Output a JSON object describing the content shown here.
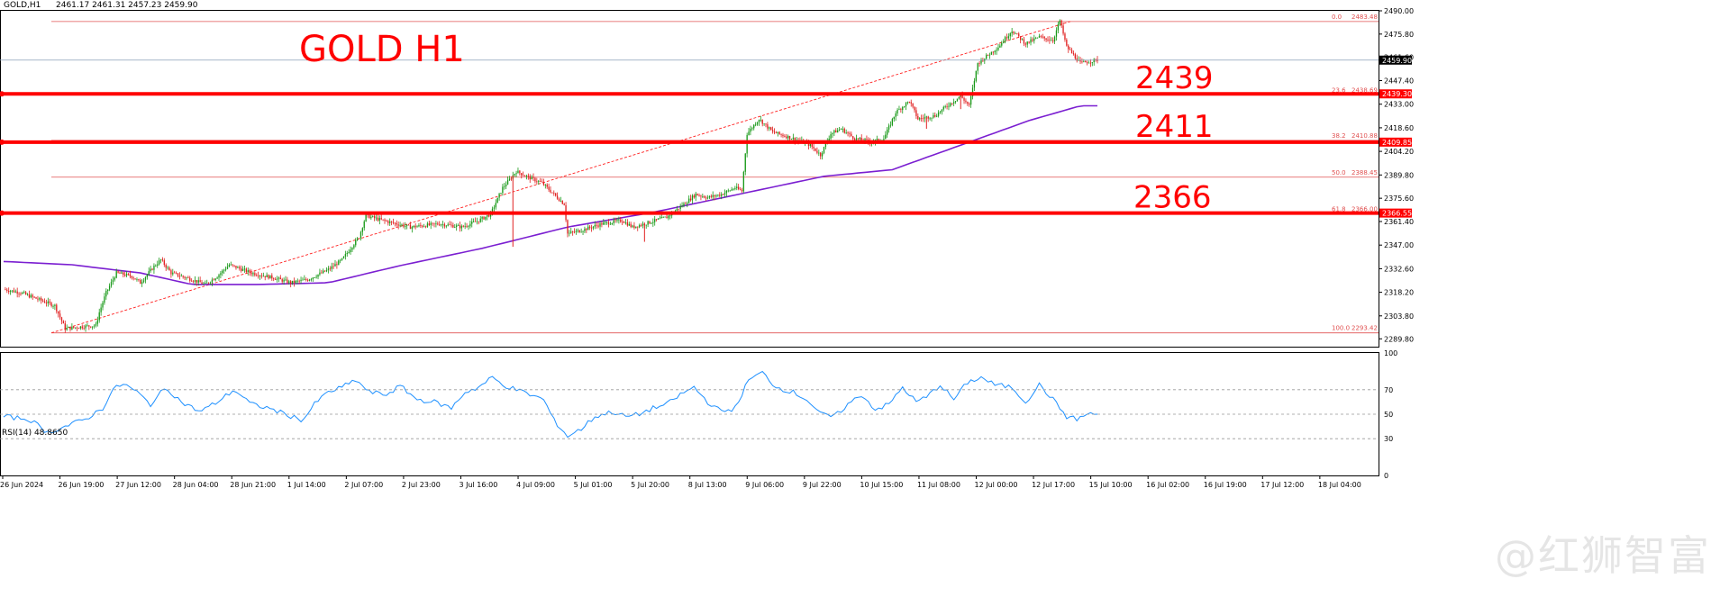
{
  "header": {
    "symbol": "GOLD,H1",
    "ohlc": "2461.17 2461.31 2457.23 2459.90"
  },
  "chart_title": "GOLD H1",
  "levels": [
    {
      "label": "2439",
      "price": 2439.3,
      "price_text": "2439.30"
    },
    {
      "label": "2411",
      "price": 2409.85,
      "price_text": "2409.85"
    },
    {
      "label": "2366",
      "price": 2366.55,
      "price_text": "2366.55"
    }
  ],
  "current_price": {
    "value": 2459.9,
    "text": "2459.90"
  },
  "fib": [
    {
      "level": "0.0",
      "price": 2483.48,
      "text": "2483.48"
    },
    {
      "level": "23.6",
      "price": 2438.69,
      "text": "2438.69"
    },
    {
      "level": "38.2",
      "price": 2410.88,
      "text": "2410.88"
    },
    {
      "level": "50.0",
      "price": 2388.45,
      "text": "2388.45"
    },
    {
      "level": "61.8",
      "price": 2366.0,
      "text": "2366.00"
    },
    {
      "level": "100.0",
      "price": 2293.42,
      "text": "2293.42"
    }
  ],
  "rsi": {
    "label": "RSI(14) 48.8650",
    "ticks": [
      "100",
      "70",
      "50",
      "30",
      "0"
    ]
  },
  "watermark": "@红狮智富",
  "colors": {
    "bull": "#1a9a1a",
    "bear": "#e02020",
    "level_line": "#ff0000",
    "ma": "#7b1fd1",
    "rsi": "#1e90ff",
    "fib": "#e05050"
  },
  "chart_data": {
    "type": "candlestick",
    "title": "GOLD H1",
    "ylim": [
      2285,
      2490
    ],
    "y_ticks": [
      "2490.00",
      "2475.80",
      "2461.60",
      "2447.40",
      "2433.00",
      "2418.60",
      "2404.20",
      "2389.80",
      "2375.60",
      "2361.40",
      "2347.00",
      "2332.60",
      "2318.20",
      "2303.80",
      "2289.80"
    ],
    "x_tick_labels": [
      "26 Jun 2024",
      "26 Jun 19:00",
      "27 Jun 12:00",
      "28 Jun 04:00",
      "28 Jun 21:00",
      "1 Jul 14:00",
      "2 Jul 07:00",
      "2 Jul 23:00",
      "3 Jul 16:00",
      "4 Jul 09:00",
      "5 Jul 01:00",
      "5 Jul 20:00",
      "8 Jul 13:00",
      "9 Jul 06:00",
      "9 Jul 22:00",
      "10 Jul 15:00",
      "11 Jul 08:00",
      "12 Jul 00:00",
      "12 Jul 17:00",
      "15 Jul 10:00",
      "16 Jul 02:00",
      "16 Jul 19:00",
      "17 Jul 12:00",
      "18 Jul 04:00"
    ],
    "price_path": [
      [
        0,
        2320
      ],
      [
        10,
        2318
      ],
      [
        20,
        2314
      ],
      [
        30,
        2310
      ],
      [
        36,
        2296
      ],
      [
        44,
        2297
      ],
      [
        54,
        2298
      ],
      [
        56,
        2306
      ],
      [
        60,
        2318
      ],
      [
        66,
        2330
      ],
      [
        75,
        2328
      ],
      [
        80,
        2324
      ],
      [
        88,
        2334
      ],
      [
        92,
        2338
      ],
      [
        98,
        2330
      ],
      [
        110,
        2326
      ],
      [
        118,
        2323
      ],
      [
        125,
        2328
      ],
      [
        132,
        2335
      ],
      [
        145,
        2330
      ],
      [
        158,
        2327
      ],
      [
        168,
        2324
      ],
      [
        178,
        2326
      ],
      [
        190,
        2332
      ],
      [
        198,
        2338
      ],
      [
        208,
        2352
      ],
      [
        212,
        2365
      ],
      [
        222,
        2362
      ],
      [
        238,
        2358
      ],
      [
        255,
        2360
      ],
      [
        268,
        2358
      ],
      [
        278,
        2362
      ],
      [
        285,
        2366
      ],
      [
        292,
        2382
      ],
      [
        300,
        2392
      ],
      [
        308,
        2388
      ],
      [
        315,
        2385
      ],
      [
        322,
        2378
      ],
      [
        328,
        2372
      ],
      [
        330,
        2354
      ],
      [
        338,
        2356
      ],
      [
        350,
        2360
      ],
      [
        362,
        2362
      ],
      [
        368,
        2358
      ],
      [
        375,
        2360
      ],
      [
        388,
        2364
      ],
      [
        398,
        2372
      ],
      [
        405,
        2378
      ],
      [
        412,
        2376
      ],
      [
        420,
        2378
      ],
      [
        428,
        2382
      ],
      [
        432,
        2380
      ],
      [
        435,
        2415
      ],
      [
        442,
        2424
      ],
      [
        450,
        2416
      ],
      [
        462,
        2412
      ],
      [
        472,
        2408
      ],
      [
        478,
        2402
      ],
      [
        484,
        2415
      ],
      [
        490,
        2418
      ],
      [
        498,
        2412
      ],
      [
        508,
        2410
      ],
      [
        515,
        2412
      ],
      [
        522,
        2428
      ],
      [
        530,
        2435
      ],
      [
        535,
        2424
      ],
      [
        545,
        2426
      ],
      [
        552,
        2432
      ],
      [
        560,
        2438
      ],
      [
        565,
        2432
      ],
      [
        570,
        2458
      ],
      [
        582,
        2468
      ],
      [
        590,
        2478
      ],
      [
        598,
        2470
      ],
      [
        606,
        2474
      ],
      [
        614,
        2472
      ],
      [
        618,
        2484
      ],
      [
        622,
        2468
      ],
      [
        630,
        2458
      ],
      [
        640,
        2460
      ]
    ],
    "ma_path": [
      [
        0,
        2337
      ],
      [
        40,
        2335
      ],
      [
        80,
        2330
      ],
      [
        110,
        2323
      ],
      [
        150,
        2323
      ],
      [
        190,
        2324
      ],
      [
        230,
        2334
      ],
      [
        280,
        2345
      ],
      [
        330,
        2358
      ],
      [
        380,
        2367
      ],
      [
        430,
        2378
      ],
      [
        480,
        2389
      ],
      [
        520,
        2393
      ],
      [
        560,
        2408
      ],
      [
        600,
        2423
      ],
      [
        630,
        2432
      ]
    ],
    "rsi_path": [
      [
        0,
        48
      ],
      [
        15,
        46
      ],
      [
        26,
        35
      ],
      [
        36,
        40
      ],
      [
        48,
        46
      ],
      [
        58,
        55
      ],
      [
        64,
        70
      ],
      [
        70,
        75
      ],
      [
        78,
        68
      ],
      [
        86,
        58
      ],
      [
        95,
        72
      ],
      [
        104,
        60
      ],
      [
        115,
        52
      ],
      [
        125,
        60
      ],
      [
        135,
        70
      ],
      [
        145,
        58
      ],
      [
        155,
        55
      ],
      [
        165,
        50
      ],
      [
        175,
        45
      ],
      [
        183,
        60
      ],
      [
        190,
        68
      ],
      [
        198,
        72
      ],
      [
        206,
        78
      ],
      [
        214,
        68
      ],
      [
        224,
        66
      ],
      [
        232,
        73
      ],
      [
        242,
        62
      ],
      [
        252,
        60
      ],
      [
        262,
        55
      ],
      [
        270,
        68
      ],
      [
        278,
        72
      ],
      [
        286,
        80
      ],
      [
        292,
        74
      ],
      [
        300,
        70
      ],
      [
        308,
        66
      ],
      [
        316,
        62
      ],
      [
        322,
        45
      ],
      [
        330,
        32
      ],
      [
        338,
        38
      ],
      [
        346,
        48
      ],
      [
        356,
        52
      ],
      [
        364,
        48
      ],
      [
        372,
        50
      ],
      [
        380,
        55
      ],
      [
        388,
        58
      ],
      [
        396,
        66
      ],
      [
        404,
        72
      ],
      [
        412,
        60
      ],
      [
        420,
        52
      ],
      [
        428,
        55
      ],
      [
        436,
        78
      ],
      [
        444,
        84
      ],
      [
        452,
        72
      ],
      [
        462,
        68
      ],
      [
        470,
        62
      ],
      [
        478,
        50
      ],
      [
        486,
        48
      ],
      [
        494,
        58
      ],
      [
        502,
        66
      ],
      [
        510,
        54
      ],
      [
        518,
        58
      ],
      [
        526,
        72
      ],
      [
        534,
        60
      ],
      [
        540,
        64
      ],
      [
        548,
        74
      ],
      [
        556,
        62
      ],
      [
        564,
        76
      ],
      [
        572,
        80
      ],
      [
        580,
        74
      ],
      [
        590,
        72
      ],
      [
        598,
        60
      ],
      [
        606,
        74
      ],
      [
        614,
        62
      ],
      [
        622,
        48
      ],
      [
        628,
        46
      ],
      [
        634,
        50
      ]
    ]
  }
}
